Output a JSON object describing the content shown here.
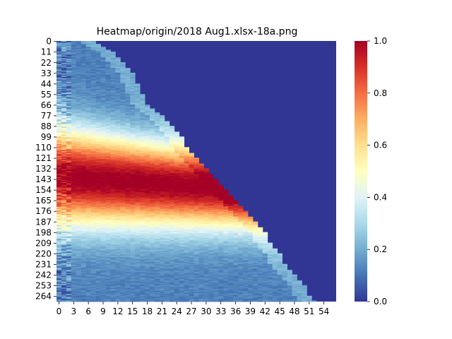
{
  "chart_data": {
    "type": "heatmap",
    "title": "Heatmap/origin/2018 Aug1.xlsx-18a.png",
    "xlabel": "",
    "ylabel": "",
    "n_rows": 270,
    "n_cols": 57,
    "x_tick_labels": [
      "0",
      "3",
      "6",
      "9",
      "12",
      "15",
      "18",
      "21",
      "24",
      "27",
      "30",
      "33",
      "36",
      "39",
      "42",
      "45",
      "48",
      "51",
      "54"
    ],
    "y_tick_labels": [
      "0",
      "11",
      "22",
      "33",
      "44",
      "55",
      "66",
      "77",
      "88",
      "99",
      "110",
      "121",
      "132",
      "143",
      "154",
      "165",
      "176",
      "187",
      "198",
      "209",
      "220",
      "231",
      "242",
      "253",
      "264"
    ],
    "colorbar": {
      "min": 0.0,
      "max": 1.0,
      "tick_labels": [
        "0.0",
        "0.2",
        "0.4",
        "0.6",
        "0.8",
        "1.0"
      ],
      "colormap": "RdYlBu_r"
    },
    "fill_value": 0.0,
    "value_model": {
      "description_of_pattern": "Upper-right triangle is 0.0. Values rise from low (~0.1) at top-left to a broad band near 1.0 around rows 110–165, then fall back to ~0.2 near the bottom; the band bends diagonally toward the lower right, ending near column 51 at the last row.",
      "boundary_points": [
        [
          0,
          7
        ],
        [
          11,
          11
        ],
        [
          22,
          13
        ],
        [
          33,
          15
        ],
        [
          44,
          16
        ],
        [
          55,
          17
        ],
        [
          66,
          18
        ],
        [
          77,
          21
        ],
        [
          88,
          23
        ],
        [
          99,
          25
        ],
        [
          110,
          26
        ],
        [
          121,
          28
        ],
        [
          132,
          30
        ],
        [
          143,
          32
        ],
        [
          154,
          34
        ],
        [
          165,
          36
        ],
        [
          176,
          38
        ],
        [
          187,
          40
        ],
        [
          198,
          42
        ],
        [
          209,
          43
        ],
        [
          220,
          45
        ],
        [
          231,
          46
        ],
        [
          242,
          48
        ],
        [
          253,
          50
        ],
        [
          264,
          51
        ],
        [
          269,
          52
        ]
      ]
    }
  }
}
